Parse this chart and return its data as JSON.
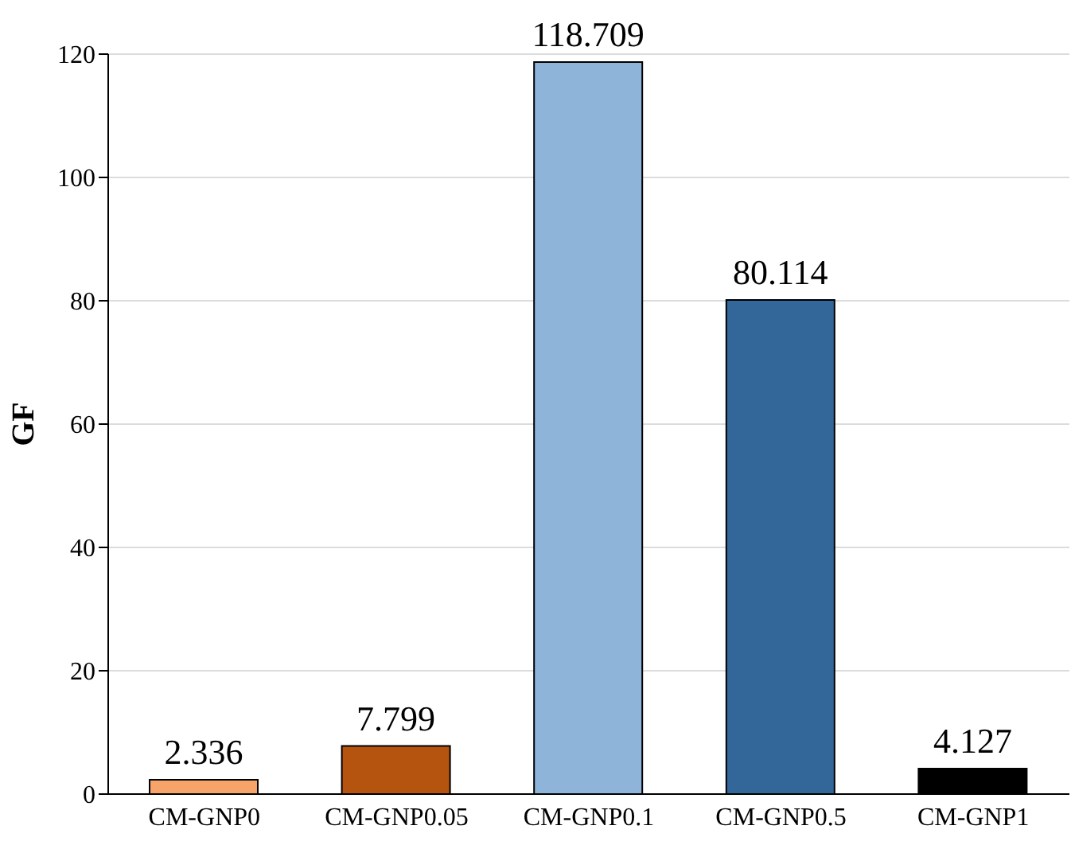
{
  "chart_data": {
    "type": "bar",
    "ylabel": "GF",
    "categories": [
      "CM-GNP0",
      "CM-GNP0.05",
      "CM-GNP0.1",
      "CM-GNP0.5",
      "CM-GNP1"
    ],
    "values": [
      2.336,
      7.799,
      118.709,
      80.114,
      4.127
    ],
    "colors": [
      "#f7a46b",
      "#b5540f",
      "#8fb4da",
      "#336699",
      "#000000"
    ],
    "ylim": [
      0,
      120
    ],
    "yticks": [
      0,
      20,
      40,
      60,
      80,
      100,
      120
    ],
    "grid": "y",
    "data_labels": true
  }
}
